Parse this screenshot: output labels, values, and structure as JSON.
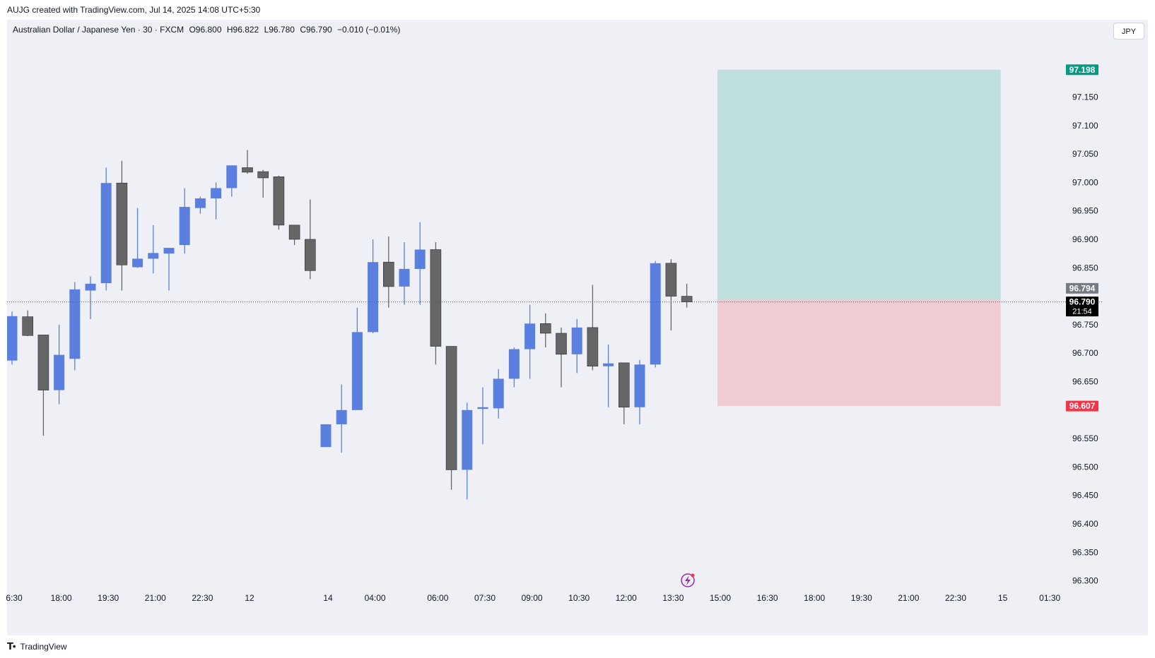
{
  "header": {
    "created_text": "AUJG created with TradingView.com, Jul 14, 2025 14:08 UTC+5:30"
  },
  "legend": {
    "symbol": "Australian Dollar / Japanese Yen · 30 · FXCM",
    "open": "O96.800",
    "high": "H96.822",
    "low": "L96.780",
    "close": "C96.790",
    "change": "−0.010 (−0.01%)"
  },
  "currency_button": "JPY",
  "footer": {
    "brand": "TradingView"
  },
  "colors": {
    "up": "#5b7fde",
    "down": "#666666",
    "background": "#eef0f5",
    "target_zone": "#bfdfdd",
    "stop_zone": "#efcbd3",
    "target_label": "#089981",
    "stop_label": "#f23645"
  },
  "icons": {
    "replay": "lightning-icon"
  },
  "chart_data": {
    "type": "candlestick",
    "ylim": [
      96.28,
      97.25
    ],
    "y_ticks": [
      "97.150",
      "97.100",
      "97.050",
      "97.000",
      "96.950",
      "96.900",
      "96.850",
      "96.750",
      "96.700",
      "96.650",
      "96.550",
      "96.500",
      "96.450",
      "96.400",
      "96.350",
      "96.300"
    ],
    "x_tick_labels": [
      "6:30",
      "18:00",
      "19:30",
      "21:00",
      "22:30",
      "12",
      "14",
      "04:00",
      "06:00",
      "07:30",
      "09:00",
      "10:30",
      "12:00",
      "13:30",
      "15:00",
      "16:30",
      "18:00",
      "19:30",
      "21:00",
      "22:30",
      "15",
      "01:30"
    ],
    "x_tick_slots": [
      0,
      3,
      6,
      9,
      12,
      15,
      20,
      23,
      27,
      30,
      33,
      36,
      39,
      42,
      45,
      48,
      51,
      54,
      57,
      60,
      63,
      66
    ],
    "candles": [
      {
        "slot": 0,
        "o": 96.687,
        "h": 96.773,
        "l": 96.68,
        "c": 96.765
      },
      {
        "slot": 1,
        "o": 96.764,
        "h": 96.775,
        "l": 96.73,
        "c": 96.731
      },
      {
        "slot": 2,
        "o": 96.732,
        "h": 96.732,
        "l": 96.555,
        "c": 96.635
      },
      {
        "slot": 3,
        "o": 96.635,
        "h": 96.75,
        "l": 96.61,
        "c": 96.697
      },
      {
        "slot": 4,
        "o": 96.69,
        "h": 96.825,
        "l": 96.67,
        "c": 96.812
      },
      {
        "slot": 5,
        "o": 96.81,
        "h": 96.835,
        "l": 96.76,
        "c": 96.822
      },
      {
        "slot": 6,
        "o": 96.823,
        "h": 97.026,
        "l": 96.81,
        "c": 96.999
      },
      {
        "slot": 7,
        "o": 96.999,
        "h": 97.038,
        "l": 96.81,
        "c": 96.855
      },
      {
        "slot": 8,
        "o": 96.851,
        "h": 96.955,
        "l": 96.85,
        "c": 96.866
      },
      {
        "slot": 9,
        "o": 96.866,
        "h": 96.925,
        "l": 96.84,
        "c": 96.876
      },
      {
        "slot": 10,
        "o": 96.875,
        "h": 96.885,
        "l": 96.81,
        "c": 96.885
      },
      {
        "slot": 11,
        "o": 96.89,
        "h": 96.99,
        "l": 96.875,
        "c": 96.957
      },
      {
        "slot": 12,
        "o": 96.955,
        "h": 96.975,
        "l": 96.945,
        "c": 96.972
      },
      {
        "slot": 13,
        "o": 96.972,
        "h": 97.0,
        "l": 96.935,
        "c": 96.99
      },
      {
        "slot": 14,
        "o": 96.99,
        "h": 97.03,
        "l": 96.975,
        "c": 97.03
      },
      {
        "slot": 15,
        "o": 97.026,
        "h": 97.057,
        "l": 97.015,
        "c": 97.018
      },
      {
        "slot": 16,
        "o": 97.019,
        "h": 97.022,
        "l": 96.973,
        "c": 97.008
      },
      {
        "slot": 17,
        "o": 97.01,
        "h": 97.012,
        "l": 96.917,
        "c": 96.925
      },
      {
        "slot": 18,
        "o": 96.925,
        "h": 96.925,
        "l": 96.89,
        "c": 96.9
      },
      {
        "slot": 19,
        "o": 96.9,
        "h": 96.97,
        "l": 96.83,
        "c": 96.845
      },
      {
        "slot": 20,
        "o": 96.535,
        "h": 96.575,
        "l": 96.535,
        "c": 96.575
      },
      {
        "slot": 21,
        "o": 96.575,
        "h": 96.645,
        "l": 96.525,
        "c": 96.6
      },
      {
        "slot": 22,
        "o": 96.6,
        "h": 96.78,
        "l": 96.6,
        "c": 96.737
      },
      {
        "slot": 23,
        "o": 96.737,
        "h": 96.9,
        "l": 96.735,
        "c": 96.86
      },
      {
        "slot": 24,
        "o": 96.86,
        "h": 96.905,
        "l": 96.78,
        "c": 96.817
      },
      {
        "slot": 25,
        "o": 96.817,
        "h": 96.895,
        "l": 96.785,
        "c": 96.848
      },
      {
        "slot": 26,
        "o": 96.848,
        "h": 96.93,
        "l": 96.785,
        "c": 96.882
      },
      {
        "slot": 27,
        "o": 96.882,
        "h": 96.895,
        "l": 96.68,
        "c": 96.712
      },
      {
        "slot": 28,
        "o": 96.712,
        "h": 96.712,
        "l": 96.46,
        "c": 96.495
      },
      {
        "slot": 29,
        "o": 96.495,
        "h": 96.613,
        "l": 96.443,
        "c": 96.6
      },
      {
        "slot": 30,
        "o": 96.602,
        "h": 96.64,
        "l": 96.54,
        "c": 96.605
      },
      {
        "slot": 31,
        "o": 96.603,
        "h": 96.672,
        "l": 96.585,
        "c": 96.655
      },
      {
        "slot": 32,
        "o": 96.655,
        "h": 96.71,
        "l": 96.64,
        "c": 96.707
      },
      {
        "slot": 33,
        "o": 96.707,
        "h": 96.785,
        "l": 96.655,
        "c": 96.752
      },
      {
        "slot": 34,
        "o": 96.752,
        "h": 96.77,
        "l": 96.71,
        "c": 96.735
      },
      {
        "slot": 35,
        "o": 96.735,
        "h": 96.745,
        "l": 96.64,
        "c": 96.698
      },
      {
        "slot": 36,
        "o": 96.698,
        "h": 96.76,
        "l": 96.665,
        "c": 96.745
      },
      {
        "slot": 37,
        "o": 96.745,
        "h": 96.82,
        "l": 96.67,
        "c": 96.677
      },
      {
        "slot": 38,
        "o": 96.677,
        "h": 96.715,
        "l": 96.605,
        "c": 96.682
      },
      {
        "slot": 39,
        "o": 96.683,
        "h": 96.683,
        "l": 96.575,
        "c": 96.605
      },
      {
        "slot": 40,
        "o": 96.605,
        "h": 96.688,
        "l": 96.575,
        "c": 96.68
      },
      {
        "slot": 41,
        "o": 96.68,
        "h": 96.862,
        "l": 96.675,
        "c": 96.858
      },
      {
        "slot": 42,
        "o": 96.858,
        "h": 96.865,
        "l": 96.74,
        "c": 96.8
      },
      {
        "slot": 43,
        "o": 96.8,
        "h": 96.822,
        "l": 96.78,
        "c": 96.79
      }
    ],
    "position": {
      "start_slot": 45,
      "end_slot": 63,
      "entry": 96.794,
      "target": 97.198,
      "stop": 96.607,
      "target_label": "97.198",
      "entry_label": "96.794",
      "stop_label": "96.607"
    },
    "last_price": {
      "value": 96.79,
      "label": "96.790",
      "countdown": "21:54"
    }
  }
}
